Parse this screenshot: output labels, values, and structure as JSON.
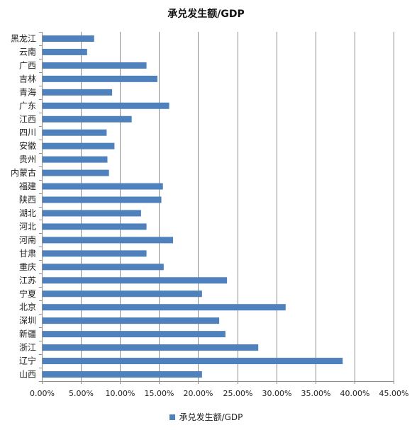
{
  "chart_data": {
    "type": "bar",
    "orientation": "horizontal",
    "title": "承兑发生额/GDP",
    "categories": [
      "黑龙江",
      "云南",
      "广西",
      "吉林",
      "青海",
      "广东",
      "江西",
      "四川",
      "安徽",
      "贵州",
      "内蒙古",
      "福建",
      "陕西",
      "湖北",
      "河北",
      "河南",
      "甘肃",
      "重庆",
      "江苏",
      "宁夏",
      "北京",
      "深圳",
      "新疆",
      "浙江",
      "辽宁",
      "山西"
    ],
    "series": [
      {
        "name": "承兑发生额/GDP",
        "values": [
          0.066,
          0.057,
          0.133,
          0.147,
          0.089,
          0.162,
          0.114,
          0.082,
          0.092,
          0.083,
          0.085,
          0.154,
          0.152,
          0.126,
          0.133,
          0.167,
          0.133,
          0.155,
          0.236,
          0.204,
          0.311,
          0.226,
          0.234,
          0.276,
          0.384,
          0.204
        ]
      }
    ],
    "xlim": [
      0,
      0.45
    ],
    "xticks": [
      0,
      0.05,
      0.1,
      0.15,
      0.2,
      0.25,
      0.3,
      0.35,
      0.4,
      0.45
    ],
    "xtick_labels": [
      "0.00%",
      "5.00%",
      "10.00%",
      "15.00%",
      "20.00%",
      "25.00%",
      "30.00%",
      "35.00%",
      "40.00%",
      "45.00%"
    ],
    "grid": "vertical",
    "legend_position": "bottom",
    "bar_color": "#4f81bd",
    "grid_color": "#8c8c8c"
  }
}
